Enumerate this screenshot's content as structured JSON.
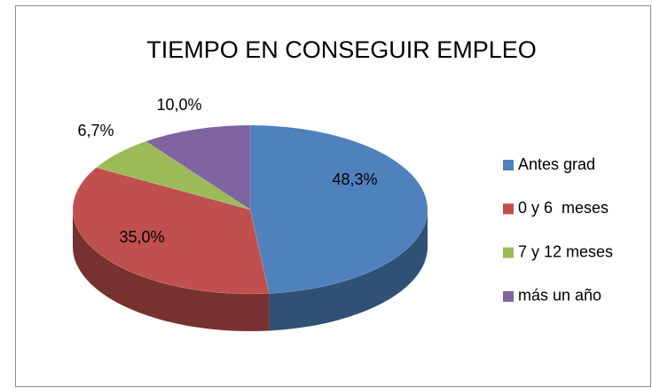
{
  "chart_data": {
    "type": "pie3d",
    "title": "TIEMPO EN CONSEGUIR EMPLEO",
    "categories": [
      "Antes grad",
      "0 y 6  meses",
      "7 y 12 meses",
      "más un año"
    ],
    "values": [
      48.3,
      35.0,
      6.7,
      10.0
    ],
    "value_labels": [
      "48,3%",
      "35,0%",
      "6,7%",
      "10,0%"
    ],
    "colors": [
      "#4f81bd",
      "#c0504d",
      "#9bbb59",
      "#8064a2"
    ],
    "legend": "right"
  }
}
